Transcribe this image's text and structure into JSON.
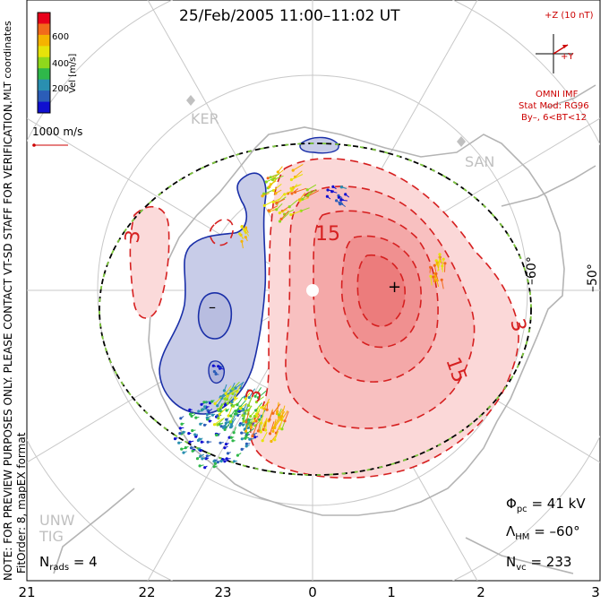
{
  "title": "25/Feb/2005  11:00–11:02 UT",
  "side_notes": {
    "preview": "NOTE: FOR PREVIEW PURPOSES ONLY. PLEASE CONTACT VT-SD STAFF FOR VERIFICATION.",
    "fit_order": "FitOrder: 8,  mapEX format",
    "coords": "MLT coordinates"
  },
  "colorbar": {
    "title": "Vel [m/s]",
    "ticks": [
      "600",
      "400",
      "200"
    ],
    "colors": [
      "#e8001a",
      "#f26a1b",
      "#f5b300",
      "#e6e30a",
      "#8fd81c",
      "#2fb84a",
      "#2a8fb0",
      "#2b5db8",
      "#1010d0"
    ]
  },
  "scale_vector": {
    "label": "1000 m/s"
  },
  "imf": {
    "z_label": "+Z (10 nT)",
    "y_label": "+Y",
    "source": "OMNI IMF",
    "model": "Stat Mod: RG96",
    "condition": "By–, 6<BT<12"
  },
  "lat_labels": [
    "–60°",
    "–50°"
  ],
  "stations": [
    "KER",
    "SAN",
    "UNW",
    "TIG"
  ],
  "contour_labels": [
    "3",
    "3",
    "15",
    "15",
    "3",
    "3"
  ],
  "polarity_marks": {
    "negative": "–",
    "positive": "+"
  },
  "stats": {
    "phi_pc": {
      "sym": "Φ",
      "sub": "pc",
      "value": "=  41  kV"
    },
    "lambda_hm": {
      "sym": "Λ",
      "sub": "HM",
      "value": "=  –60°"
    },
    "n_vc": {
      "sym": "N",
      "sub": "vc",
      "value": "=  233"
    },
    "n_rads": {
      "sym": "N",
      "sub": "rads",
      "value": "=  4"
    }
  },
  "x_ticks": [
    "21",
    "22",
    "23",
    "0",
    "1",
    "2",
    "3"
  ],
  "colors": {
    "positive_contour": "#d62020",
    "negative_contour": "#1a2fa8",
    "positive_fill": "#f4a0a0",
    "negative_fill": "#c8cce8",
    "grid": "#c8c8c8",
    "coastline": "#b4b4b4",
    "boundary_dash": "#7cc63a"
  }
}
